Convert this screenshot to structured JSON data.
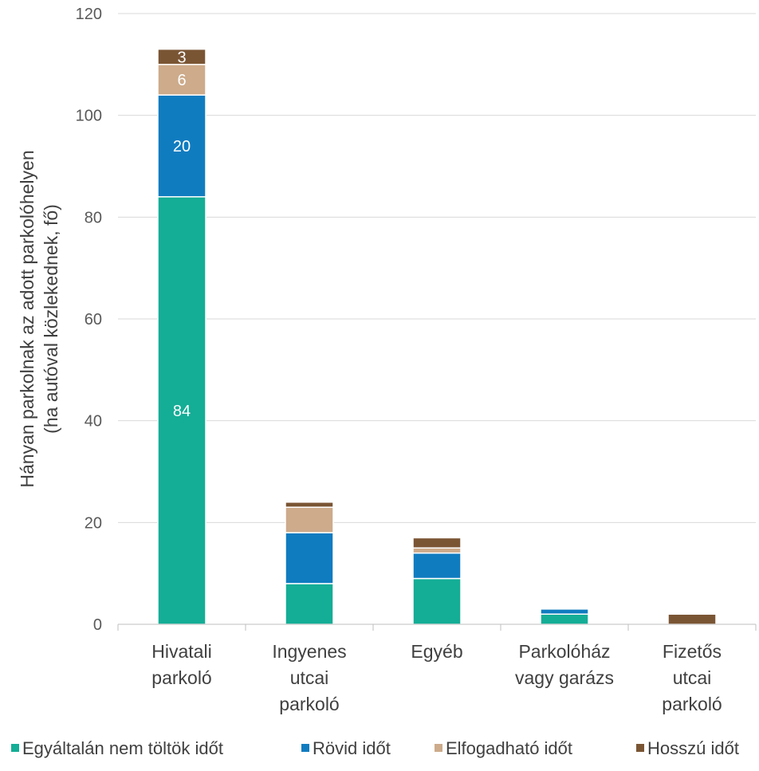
{
  "chart_data": {
    "type": "bar",
    "stacked": true,
    "categories": [
      [
        "Hivatali",
        "parkoló"
      ],
      [
        "Ingyenes",
        "utcai",
        "parkoló"
      ],
      [
        "Egyéb"
      ],
      [
        "Parkolóház",
        "vagy garázs"
      ],
      [
        "Fizetős",
        "utcai",
        "parkoló"
      ]
    ],
    "series": [
      {
        "name": "Egyáltalán nem töltök időt",
        "color": "#14AD96",
        "values": [
          84,
          8,
          9,
          2,
          0
        ]
      },
      {
        "name": "Rövid időt",
        "color": "#107CC0",
        "values": [
          20,
          10,
          5,
          1,
          0
        ]
      },
      {
        "name": "Elfogadható időt",
        "color": "#CDAB8B",
        "values": [
          6,
          5,
          1,
          0,
          0
        ]
      },
      {
        "name": "Hosszú időt",
        "color": "#7A5534",
        "values": [
          3,
          1,
          2,
          0,
          2
        ]
      }
    ],
    "data_labels": [
      {
        "category": 0,
        "series": 0,
        "text": "84"
      },
      {
        "category": 0,
        "series": 1,
        "text": "20"
      },
      {
        "category": 0,
        "series": 2,
        "text": "6"
      },
      {
        "category": 0,
        "series": 3,
        "text": "3"
      }
    ],
    "ylabel": [
      "Hányan parkolnak az adott parkolóhelyen",
      "(ha autóval közlekednek, fő)"
    ],
    "xlabel": "",
    "ylim": [
      0,
      120
    ],
    "yticks": [
      0,
      20,
      40,
      60,
      80,
      100,
      120
    ],
    "grid": true,
    "legend_position": "bottom"
  }
}
